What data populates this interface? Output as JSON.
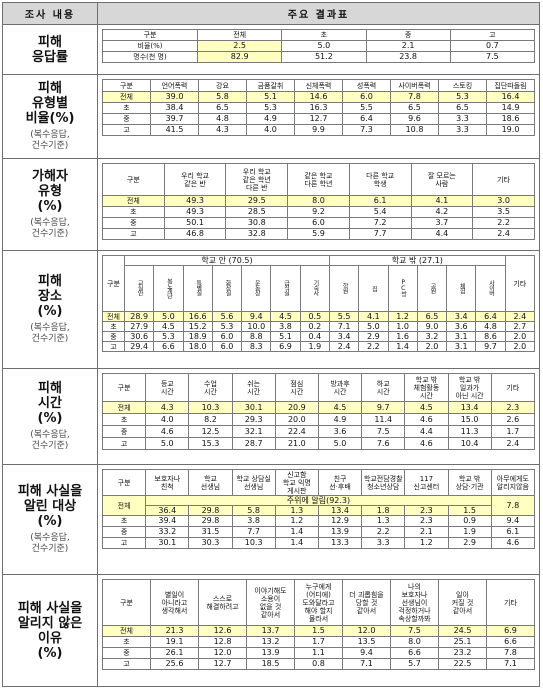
{
  "header": {
    "col1": "조사 내용",
    "col2": "주요 결과표"
  },
  "s1": {
    "title": "피해\n응답률",
    "head": [
      "구분",
      "전체",
      "초",
      "중",
      "고"
    ],
    "rows": [
      [
        "비율(%)",
        "2.5",
        "5.0",
        "2.1",
        "0.7"
      ],
      [
        "명수(천 명)",
        "82.9",
        "51.2",
        "23.8",
        "7.5"
      ]
    ]
  },
  "s2": {
    "title": "피해\n유형별\n비율(%)",
    "note": "(복수응답,\n건수기준)",
    "head": [
      "구분",
      "언어폭력",
      "강요",
      "금품갈취",
      "신체폭력",
      "성폭력",
      "사이버폭력",
      "스토킹",
      "집단따돌림"
    ],
    "rows": [
      [
        "전체",
        "39.0",
        "5.8",
        "5.1",
        "14.6",
        "6.0",
        "7.8",
        "5.3",
        "16.4"
      ],
      [
        "초",
        "38.4",
        "6.5",
        "5.3",
        "16.3",
        "5.5",
        "6.5",
        "6.5",
        "14.9"
      ],
      [
        "중",
        "39.7",
        "4.8",
        "4.9",
        "12.7",
        "6.4",
        "9.6",
        "3.3",
        "18.6"
      ],
      [
        "고",
        "41.5",
        "4.3",
        "4.0",
        "9.9",
        "7.3",
        "10.8",
        "3.3",
        "19.0"
      ]
    ]
  },
  "s3": {
    "title": "가해자\n유형\n(%)",
    "note": "(복수응답,\n건수기준)",
    "head": [
      "구분",
      "우리 학교\n같은 반",
      "우리 학교\n같은 학년\n다른 반",
      "같은 학교\n다른 학년",
      "다른 학교\n학생",
      "잘 모르는\n사람",
      "기타"
    ],
    "rows": [
      [
        "전체",
        "49.3",
        "29.5",
        "8.0",
        "6.1",
        "4.1",
        "3.0"
      ],
      [
        "초",
        "49.3",
        "28.5",
        "9.2",
        "5.4",
        "4.2",
        "3.5"
      ],
      [
        "중",
        "50.1",
        "30.8",
        "6.0",
        "7.2",
        "3.7",
        "2.2"
      ],
      [
        "고",
        "46.8",
        "32.8",
        "5.9",
        "7.7",
        "4.4",
        "2.4"
      ]
    ]
  },
  "s4": {
    "title": "피해\n장소\n(%)",
    "note": "(복수응답,\n건수기준)",
    "rowhead": "구분",
    "group_in": "학교 안 (70.5)",
    "group_out": "학교 밖 (27.1)",
    "etc": "기타",
    "sub": [
      "교실 안",
      "복도계단/화장실",
      "특별실(급식실 등)",
      "화장실",
      "운동장 체육관 강당",
      "급식실 매점 등",
      "기숙사",
      "학원 주변",
      "집 등",
      "PC방 노래방 오락실",
      "공원 놀이터 산",
      "학교 밖 체험활동 장소",
      "사이버 공간"
    ],
    "sub_short": [
      "교실안",
      "복도계단",
      "특별실",
      "화장실",
      "운동장",
      "급식실",
      "기숙사",
      "학원",
      "집",
      "PC방",
      "공원",
      "체험",
      "사이버"
    ],
    "rows": [
      [
        "전체",
        "28.9",
        "5.0",
        "16.6",
        "5.6",
        "9.4",
        "4.5",
        "0.5",
        "5.5",
        "4.1",
        "1.2",
        "6.5",
        "3.4",
        "6.4",
        "2.4"
      ],
      [
        "초",
        "27.9",
        "4.5",
        "15.2",
        "5.3",
        "10.0",
        "3.8",
        "0.2",
        "7.1",
        "5.0",
        "1.0",
        "9.0",
        "3.6",
        "4.8",
        "2.7"
      ],
      [
        "중",
        "30.6",
        "5.3",
        "18.9",
        "6.0",
        "8.8",
        "5.1",
        "0.4",
        "3.4",
        "2.9",
        "1.6",
        "3.2",
        "3.1",
        "8.6",
        "2.0"
      ],
      [
        "고",
        "29.4",
        "6.6",
        "18.0",
        "6.0",
        "8.3",
        "6.9",
        "1.9",
        "2.4",
        "2.2",
        "1.4",
        "2.0",
        "3.1",
        "9.7",
        "2.0"
      ]
    ]
  },
  "s5": {
    "title": "피해\n시간\n(%)",
    "note": "(복수응답,\n건수기준)",
    "head": [
      "구분",
      "등교\n시간",
      "수업\n시간",
      "쉬는\n시간",
      "점심\n시간",
      "방과후\n시간",
      "하교\n시간",
      "학교 밖\n체험활동\n시간",
      "학교 밖\n일과가\n아닌 시간",
      "기타"
    ],
    "rows": [
      [
        "전체",
        "4.3",
        "10.3",
        "30.1",
        "20.9",
        "4.5",
        "9.7",
        "4.5",
        "13.4",
        "2.3"
      ],
      [
        "초",
        "4.0",
        "8.2",
        "29.3",
        "20.0",
        "4.9",
        "11.4",
        "4.6",
        "15.0",
        "2.6"
      ],
      [
        "중",
        "4.6",
        "12.5",
        "32.1",
        "22.4",
        "3.6",
        "7.5",
        "4.4",
        "11.3",
        "1.7"
      ],
      [
        "고",
        "5.0",
        "15.3",
        "28.7",
        "21.0",
        "5.0",
        "7.6",
        "4.6",
        "10.4",
        "2.4"
      ]
    ]
  },
  "s6": {
    "title": "피해 사실을\n알린 대상\n(%)",
    "note": "(복수응답,\n건수기준)",
    "head": [
      "구분",
      "보호자나\n친척",
      "학교\n선생님",
      "학교 상담실\n선생님",
      "신고함\n학교 익명\n게시판",
      "친구\n선·후배",
      "학교전담경찰\n청소년상담",
      "117\n신고센터",
      "학교 밖\n상담·기관",
      "아무에게도\n알리지않음"
    ],
    "told_label": "주위에 알림(92.3)",
    "rows": [
      [
        "전체",
        "36.4",
        "29.8",
        "5.8",
        "1.3",
        "13.4",
        "1.8",
        "2.3",
        "1.5",
        "7.8"
      ],
      [
        "초",
        "39.4",
        "29.8",
        "3.8",
        "1.2",
        "12.9",
        "1.3",
        "2.3",
        "0.9",
        "9.4"
      ],
      [
        "중",
        "33.2",
        "31.5",
        "7.7",
        "1.4",
        "13.9",
        "2.2",
        "2.1",
        "1.9",
        "6.1"
      ],
      [
        "고",
        "30.1",
        "30.3",
        "10.3",
        "1.4",
        "13.3",
        "3.3",
        "1.2",
        "2.9",
        "4.6"
      ]
    ]
  },
  "s7": {
    "title": "피해 사실을\n알리지 않은\n이유\n(%)",
    "head": [
      "구분",
      "별일이\n아니라고\n생각해서",
      "스스로\n해결하려고",
      "이야기해도\n소용이\n없을 것\n같아서",
      "누구에게\n(어디에)\n도와달라고\n해야 할지\n몰라서",
      "더 괴롭힘을\n당할 것\n같아서",
      "나의\n보호자나\n선생님이\n걱정하거나\n속상할까봐",
      "일이\n커질 것\n같아서",
      "기타"
    ],
    "rows": [
      [
        "전체",
        "21.3",
        "12.6",
        "13.7",
        "1.5",
        "12.0",
        "7.5",
        "24.5",
        "6.9"
      ],
      [
        "초",
        "19.1",
        "12.8",
        "13.2",
        "1.7",
        "13.5",
        "8.0",
        "25.1",
        "6.6"
      ],
      [
        "중",
        "26.1",
        "12.0",
        "13.9",
        "1.1",
        "9.4",
        "6.6",
        "23.2",
        "7.8"
      ],
      [
        "고",
        "25.6",
        "12.7",
        "18.5",
        "0.8",
        "7.1",
        "5.7",
        "22.5",
        "7.1"
      ]
    ]
  }
}
